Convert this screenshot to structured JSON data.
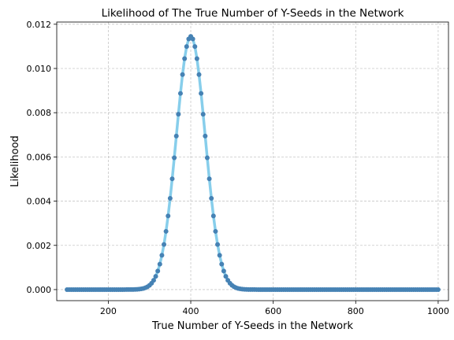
{
  "chart_data": {
    "type": "line",
    "title": "Likelihood of The True Number of Y-Seeds in the Network",
    "xlabel": "True Number of Y-Seeds in the Network",
    "ylabel": "Likelihood",
    "xlim": [
      75,
      1025
    ],
    "ylim": [
      -0.0005,
      0.0121
    ],
    "xticks": [
      200,
      400,
      600,
      800,
      1000
    ],
    "yticks": [
      0.0,
      0.002,
      0.004,
      0.006,
      0.008,
      0.01,
      0.012
    ],
    "ytick_labels": [
      "0.000",
      "0.002",
      "0.004",
      "0.006",
      "0.008",
      "0.010",
      "0.012"
    ],
    "grid": true,
    "distribution": {
      "shape": "gaussian-like",
      "peak_x": 400,
      "peak_y": 0.01145,
      "sigma": 35,
      "x_start": 100,
      "x_end": 1000,
      "step": 5
    },
    "series": [
      {
        "style": "line",
        "color": "#87ceeb"
      },
      {
        "style": "markers",
        "color": "#4682b4"
      }
    ]
  }
}
